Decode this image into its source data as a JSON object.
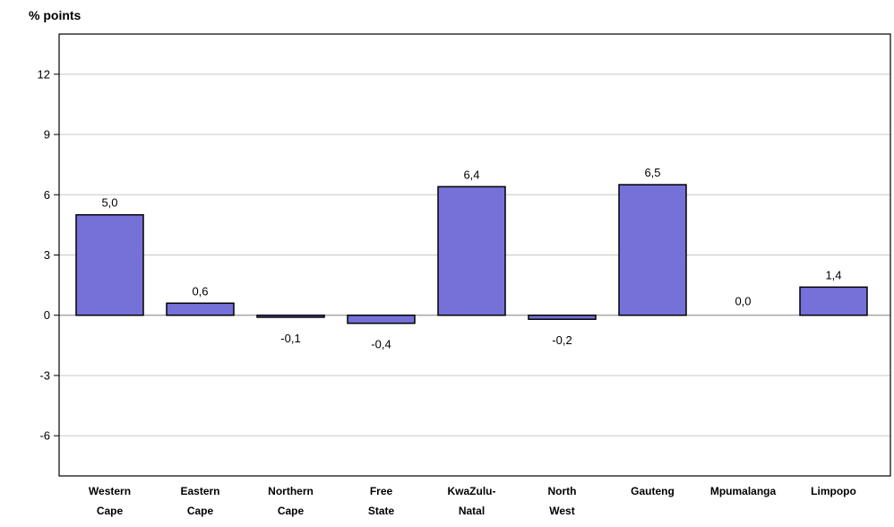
{
  "chart_data": {
    "type": "bar",
    "ylabel": "% points",
    "ylim": [
      -8,
      14
    ],
    "yticks": [
      -6,
      -3,
      0,
      3,
      6,
      9,
      12
    ],
    "ytick_labels": [
      "-6",
      "-3",
      "0",
      "3",
      "6",
      "9",
      "12"
    ],
    "grid": true,
    "categories": [
      [
        "Western",
        "Cape"
      ],
      [
        "Eastern",
        "Cape"
      ],
      [
        "Northern",
        "Cape"
      ],
      [
        "Free",
        "State"
      ],
      [
        "KwaZulu-",
        "Natal"
      ],
      [
        "North",
        "West"
      ],
      [
        "Gauteng"
      ],
      [
        "Mpumalanga"
      ],
      [
        "Limpopo"
      ]
    ],
    "values": [
      5.0,
      0.6,
      -0.1,
      -0.4,
      6.4,
      -0.2,
      6.5,
      0.0,
      1.4
    ],
    "data_labels": [
      "5,0",
      "0,6",
      "-0,1",
      "-0,4",
      "6,4",
      "-0,2",
      "6,5",
      "0,0",
      "1,4"
    ],
    "colors": {
      "bar_fill": "#7571d8",
      "bar_stroke": "#000000",
      "grid": "#c8c8c8",
      "zero_line": "#808080",
      "frame": "#000000"
    }
  }
}
